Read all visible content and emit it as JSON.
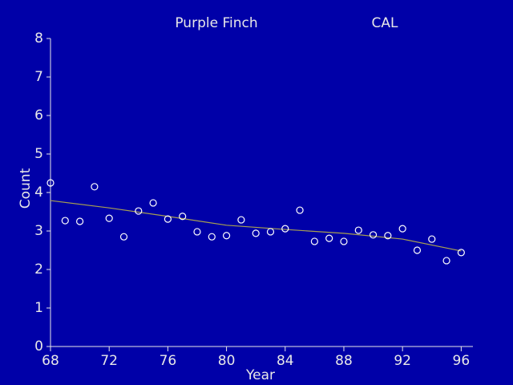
{
  "chart_data": {
    "type": "scatter",
    "title": "Purple Finch",
    "subtitle": "CAL",
    "xlabel": "Year",
    "ylabel": "Count",
    "x": [
      68,
      69,
      70,
      71,
      72,
      73,
      74,
      75,
      76,
      77,
      78,
      79,
      80,
      81,
      82,
      83,
      84,
      85,
      86,
      87,
      88,
      89,
      90,
      91,
      92,
      93,
      94,
      95,
      96
    ],
    "values": [
      4.25,
      3.27,
      3.25,
      4.15,
      3.33,
      2.85,
      3.52,
      3.73,
      3.31,
      3.38,
      2.98,
      2.85,
      2.88,
      3.29,
      2.94,
      2.98,
      3.06,
      3.54,
      2.73,
      2.81,
      2.73,
      3.02,
      2.9,
      2.88,
      3.06,
      2.5,
      2.79,
      2.23,
      2.44
    ],
    "color": "#ffffff",
    "trend": {
      "x": [
        68,
        72,
        76,
        80,
        84,
        88,
        92,
        96
      ],
      "values": [
        3.79,
        3.6,
        3.38,
        3.15,
        3.04,
        2.94,
        2.79,
        2.48
      ],
      "color": "#a8a050"
    },
    "xlim": [
      68,
      96.8
    ],
    "xticks": [
      68,
      72,
      76,
      80,
      84,
      88,
      92,
      96
    ],
    "ylim": [
      0,
      8
    ],
    "yticks": [
      0,
      1,
      2,
      3,
      4,
      5,
      6,
      7,
      8
    ]
  }
}
